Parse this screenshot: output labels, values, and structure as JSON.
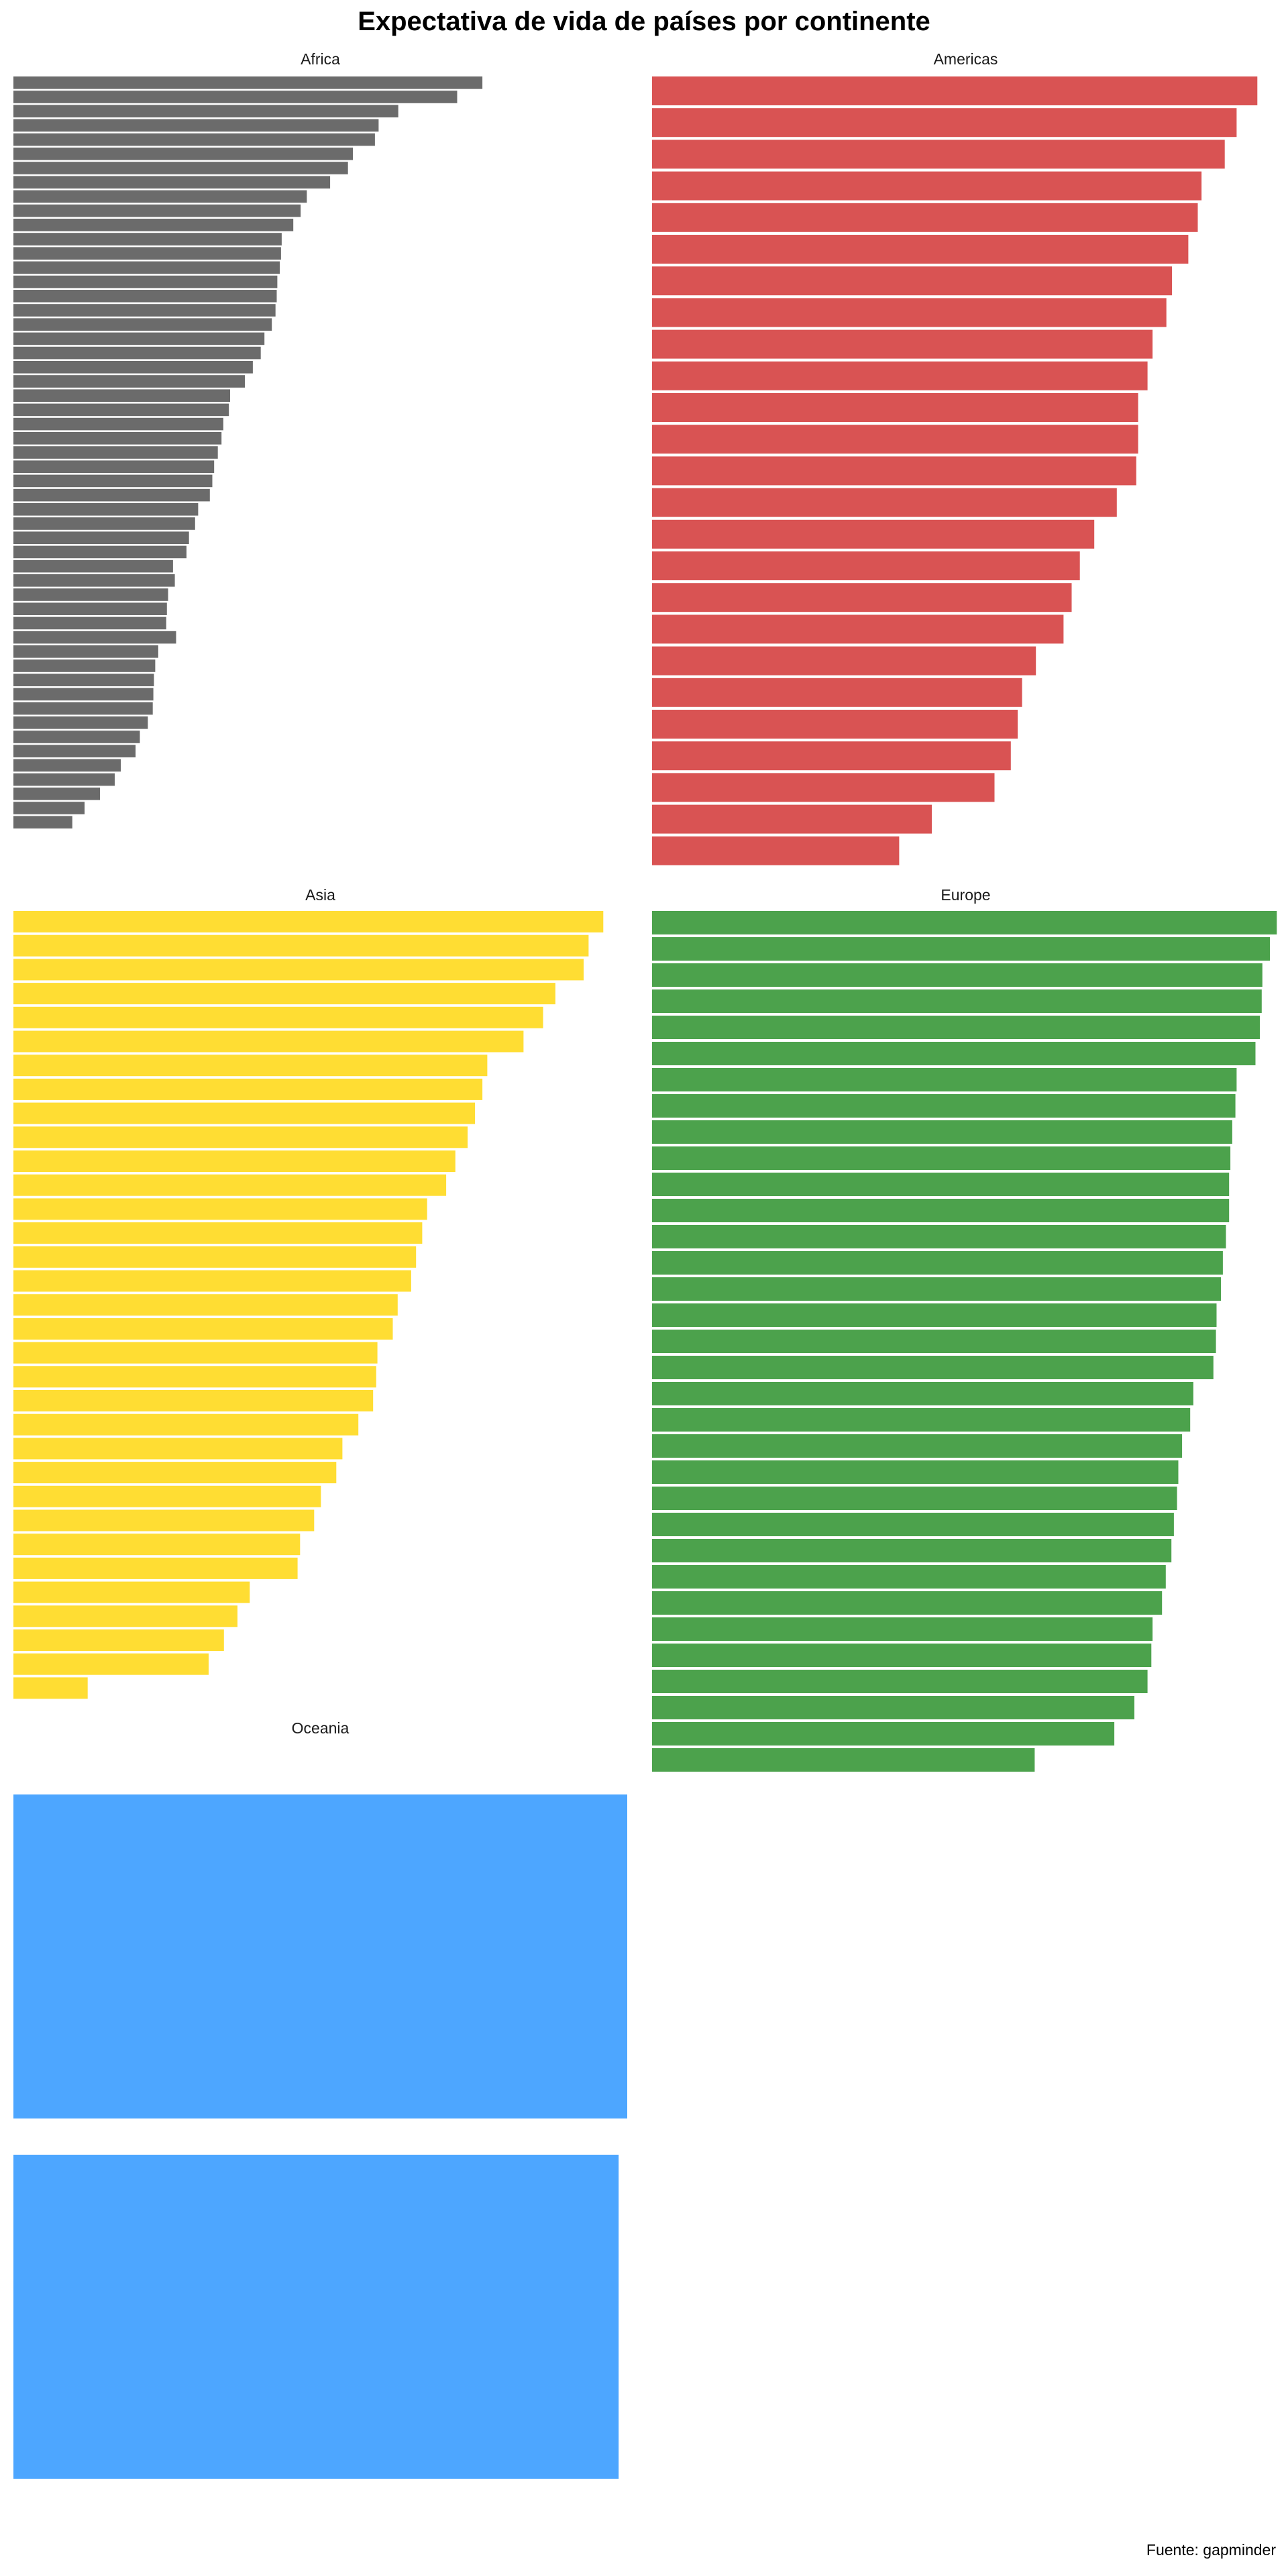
{
  "title": "Expectativa de vida de países por continente",
  "source": "Fuente: gapminder",
  "chart_data": [
    {
      "type": "bar",
      "orientation": "horizontal",
      "facet": "Africa",
      "color": "#6B6B6B",
      "xlim": [
        0,
        100
      ],
      "values": [
        76.4,
        72.3,
        62.7,
        59.5,
        58.9,
        55.3,
        54.5,
        51.6,
        47.8,
        46.8,
        45.6,
        43.7,
        43.6,
        43.4,
        43.0,
        42.9,
        42.7,
        42.1,
        40.9,
        40.3,
        39.0,
        37.7,
        35.3,
        35.1,
        34.2,
        33.9,
        33.3,
        32.7,
        32.4,
        32.0,
        30.1,
        29.6,
        28.6,
        28.2,
        26.0,
        26.3,
        25.2,
        25.0,
        24.9,
        26.5,
        23.6,
        23.1,
        22.9,
        22.8,
        22.7,
        21.9,
        20.6,
        19.9,
        17.5,
        16.5,
        14.1,
        11.6,
        9.6
      ]
    },
    {
      "type": "bar",
      "orientation": "horizontal",
      "facet": "Americas",
      "color": "#D95353",
      "xlim": [
        0,
        100
      ],
      "values": [
        96.5,
        93.2,
        91.3,
        87.6,
        87.0,
        85.5,
        82.9,
        82.0,
        79.8,
        79.0,
        77.5,
        77.5,
        77.2,
        74.1,
        70.5,
        68.2,
        66.9,
        65.6,
        61.2,
        59.0,
        58.3,
        57.2,
        54.6,
        44.6,
        39.4
      ]
    },
    {
      "type": "bar",
      "orientation": "horizontal",
      "facet": "Asia",
      "color": "#FFDD33",
      "xlim": [
        0,
        100
      ],
      "values": [
        96.1,
        93.7,
        92.9,
        88.3,
        86.3,
        83.1,
        77.2,
        76.4,
        75.2,
        74.0,
        72.0,
        70.5,
        67.4,
        66.6,
        65.6,
        64.8,
        62.6,
        61.8,
        59.3,
        59.1,
        58.6,
        56.2,
        53.6,
        52.6,
        50.1,
        49.0,
        46.7,
        46.3,
        38.5,
        36.5,
        34.3,
        31.8,
        12.1
      ]
    },
    {
      "type": "bar",
      "orientation": "horizontal",
      "facet": "Europe",
      "color": "#4CA24C",
      "xlim": [
        0,
        100
      ],
      "values": [
        99.6,
        98.5,
        97.3,
        97.2,
        96.9,
        96.2,
        93.2,
        93.0,
        92.5,
        92.2,
        92.0,
        92.0,
        91.5,
        91.0,
        90.7,
        90.0,
        89.9,
        89.5,
        86.3,
        85.8,
        84.5,
        83.9,
        83.7,
        83.2,
        82.8,
        81.9,
        81.3,
        79.8,
        79.6,
        79.0,
        76.9,
        73.7,
        61.0,
        0.0
      ]
    },
    {
      "type": "bar",
      "orientation": "horizontal",
      "facet": "Oceania",
      "color": "#4DA6FF",
      "xlim": [
        0,
        100
      ],
      "values": [
        100.0,
        98.6
      ]
    }
  ]
}
